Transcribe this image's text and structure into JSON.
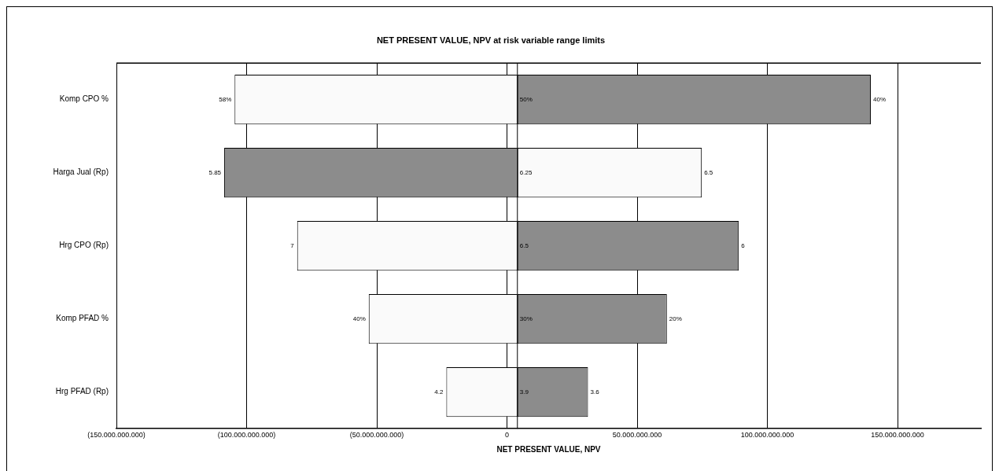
{
  "chart_data": {
    "type": "bar",
    "orientation": "horizontal",
    "title": "NET PRESENT VALUE, NPV at risk variable range limits",
    "xlabel": "NET PRESENT VALUE, NPV",
    "categories": [
      "Komp CPO %",
      "Harga Jual (Rp)",
      "Hrg CPO (Rp)",
      "Komp PFAD %",
      "Hrg PFAD (Rp)"
    ],
    "series": [
      {
        "color": "#fafafa",
        "base": [
          4000000000,
          4000000000,
          4000000000,
          4000000000,
          4000000000
        ],
        "values": [
          -108600000000,
          70800000000,
          -84600000000,
          -57100000000,
          -27300000000
        ]
      },
      {
        "color": "#8c8c8c",
        "base": [
          4000000000,
          4000000000,
          4000000000,
          4000000000,
          4000000000
        ],
        "values": [
          135700000000,
          -112600000000,
          85000000000,
          57400000000,
          27100000000
        ]
      }
    ],
    "xlim": [
      -150000000000,
      182000000000
    ],
    "xticks": [
      {
        "value": -150000000000,
        "label": "(150.000.000.000)"
      },
      {
        "value": -100000000000,
        "label": "(100.000.000.000)"
      },
      {
        "value": -50000000000,
        "label": "(50.000.000.000)"
      },
      0,
      {
        "value": 50000000000,
        "label": "50.000.000.000"
      },
      {
        "value": 100000000000,
        "label": "100.000.000.000"
      },
      {
        "value": 150000000000,
        "label": "150.000.000.000"
      }
    ],
    "ref_lines": [
      {
        "axis": "x",
        "value": 4000000000
      }
    ],
    "grid": "x",
    "legend": false,
    "annotations": [
      {
        "text": "58%",
        "x": -104600000000,
        "y": "Komp CPO %"
      },
      {
        "text": "50%",
        "x": 4000000000,
        "y": "Komp CPO %"
      },
      {
        "text": "40%",
        "x": 139700000000,
        "y": "Komp CPO %"
      },
      {
        "text": "5.85",
        "x": -108600000000,
        "y": "Harga Jual (Rp)"
      },
      {
        "text": "6.25",
        "x": 4000000000,
        "y": "Harga Jual (Rp)"
      },
      {
        "text": "6.5",
        "x": 74800000000,
        "y": "Harga Jual (Rp)"
      },
      {
        "text": "7",
        "x": -80600000000,
        "y": "Hrg CPO (Rp)"
      },
      {
        "text": "6.5",
        "x": 4000000000,
        "y": "Hrg CPO (Rp)"
      },
      {
        "text": "6",
        "x": 89000000000,
        "y": "Hrg CPO (Rp)"
      },
      {
        "text": "40%",
        "x": -53100000000,
        "y": "Komp PFAD %"
      },
      {
        "text": "30%",
        "x": 4000000000,
        "y": "Komp PFAD %"
      },
      {
        "text": "20%",
        "x": 61400000000,
        "y": "Komp PFAD %"
      },
      {
        "text": "4.2",
        "x": -23300000000,
        "y": "Hrg PFAD (Rp)"
      },
      {
        "text": "3.9",
        "x": 4000000000,
        "y": "Hrg PFAD (Rp)"
      },
      {
        "text": "3.6",
        "x": 31100000000,
        "y": "Hrg PFAD (Rp)"
      }
    ]
  }
}
